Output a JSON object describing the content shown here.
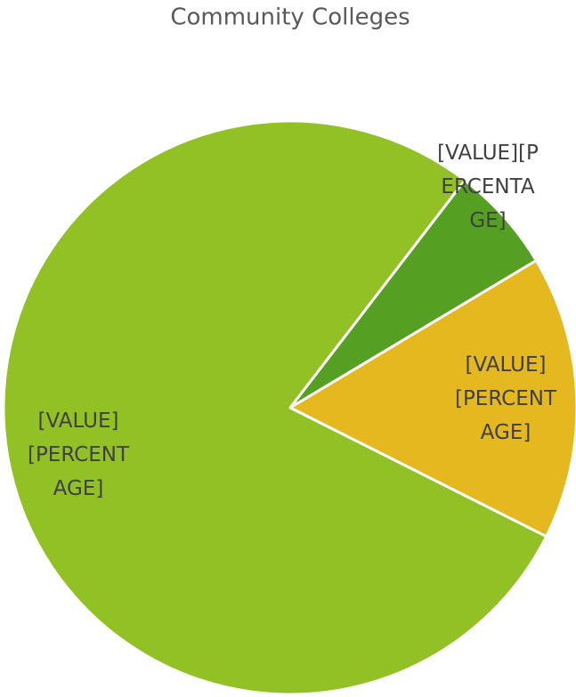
{
  "chart_data": {
    "type": "pie",
    "title": "Community Colleges",
    "categories": [
      null,
      null,
      null
    ],
    "values": [
      6,
      16,
      78
    ],
    "value_labels": [
      "[VALUE][PERCENTAGE]",
      "[VALUE][PERCENTAGE]",
      "[VALUE][PERCENTAGE]"
    ],
    "colors": [
      "#55a023",
      "#e6b820",
      "#92c125"
    ]
  }
}
